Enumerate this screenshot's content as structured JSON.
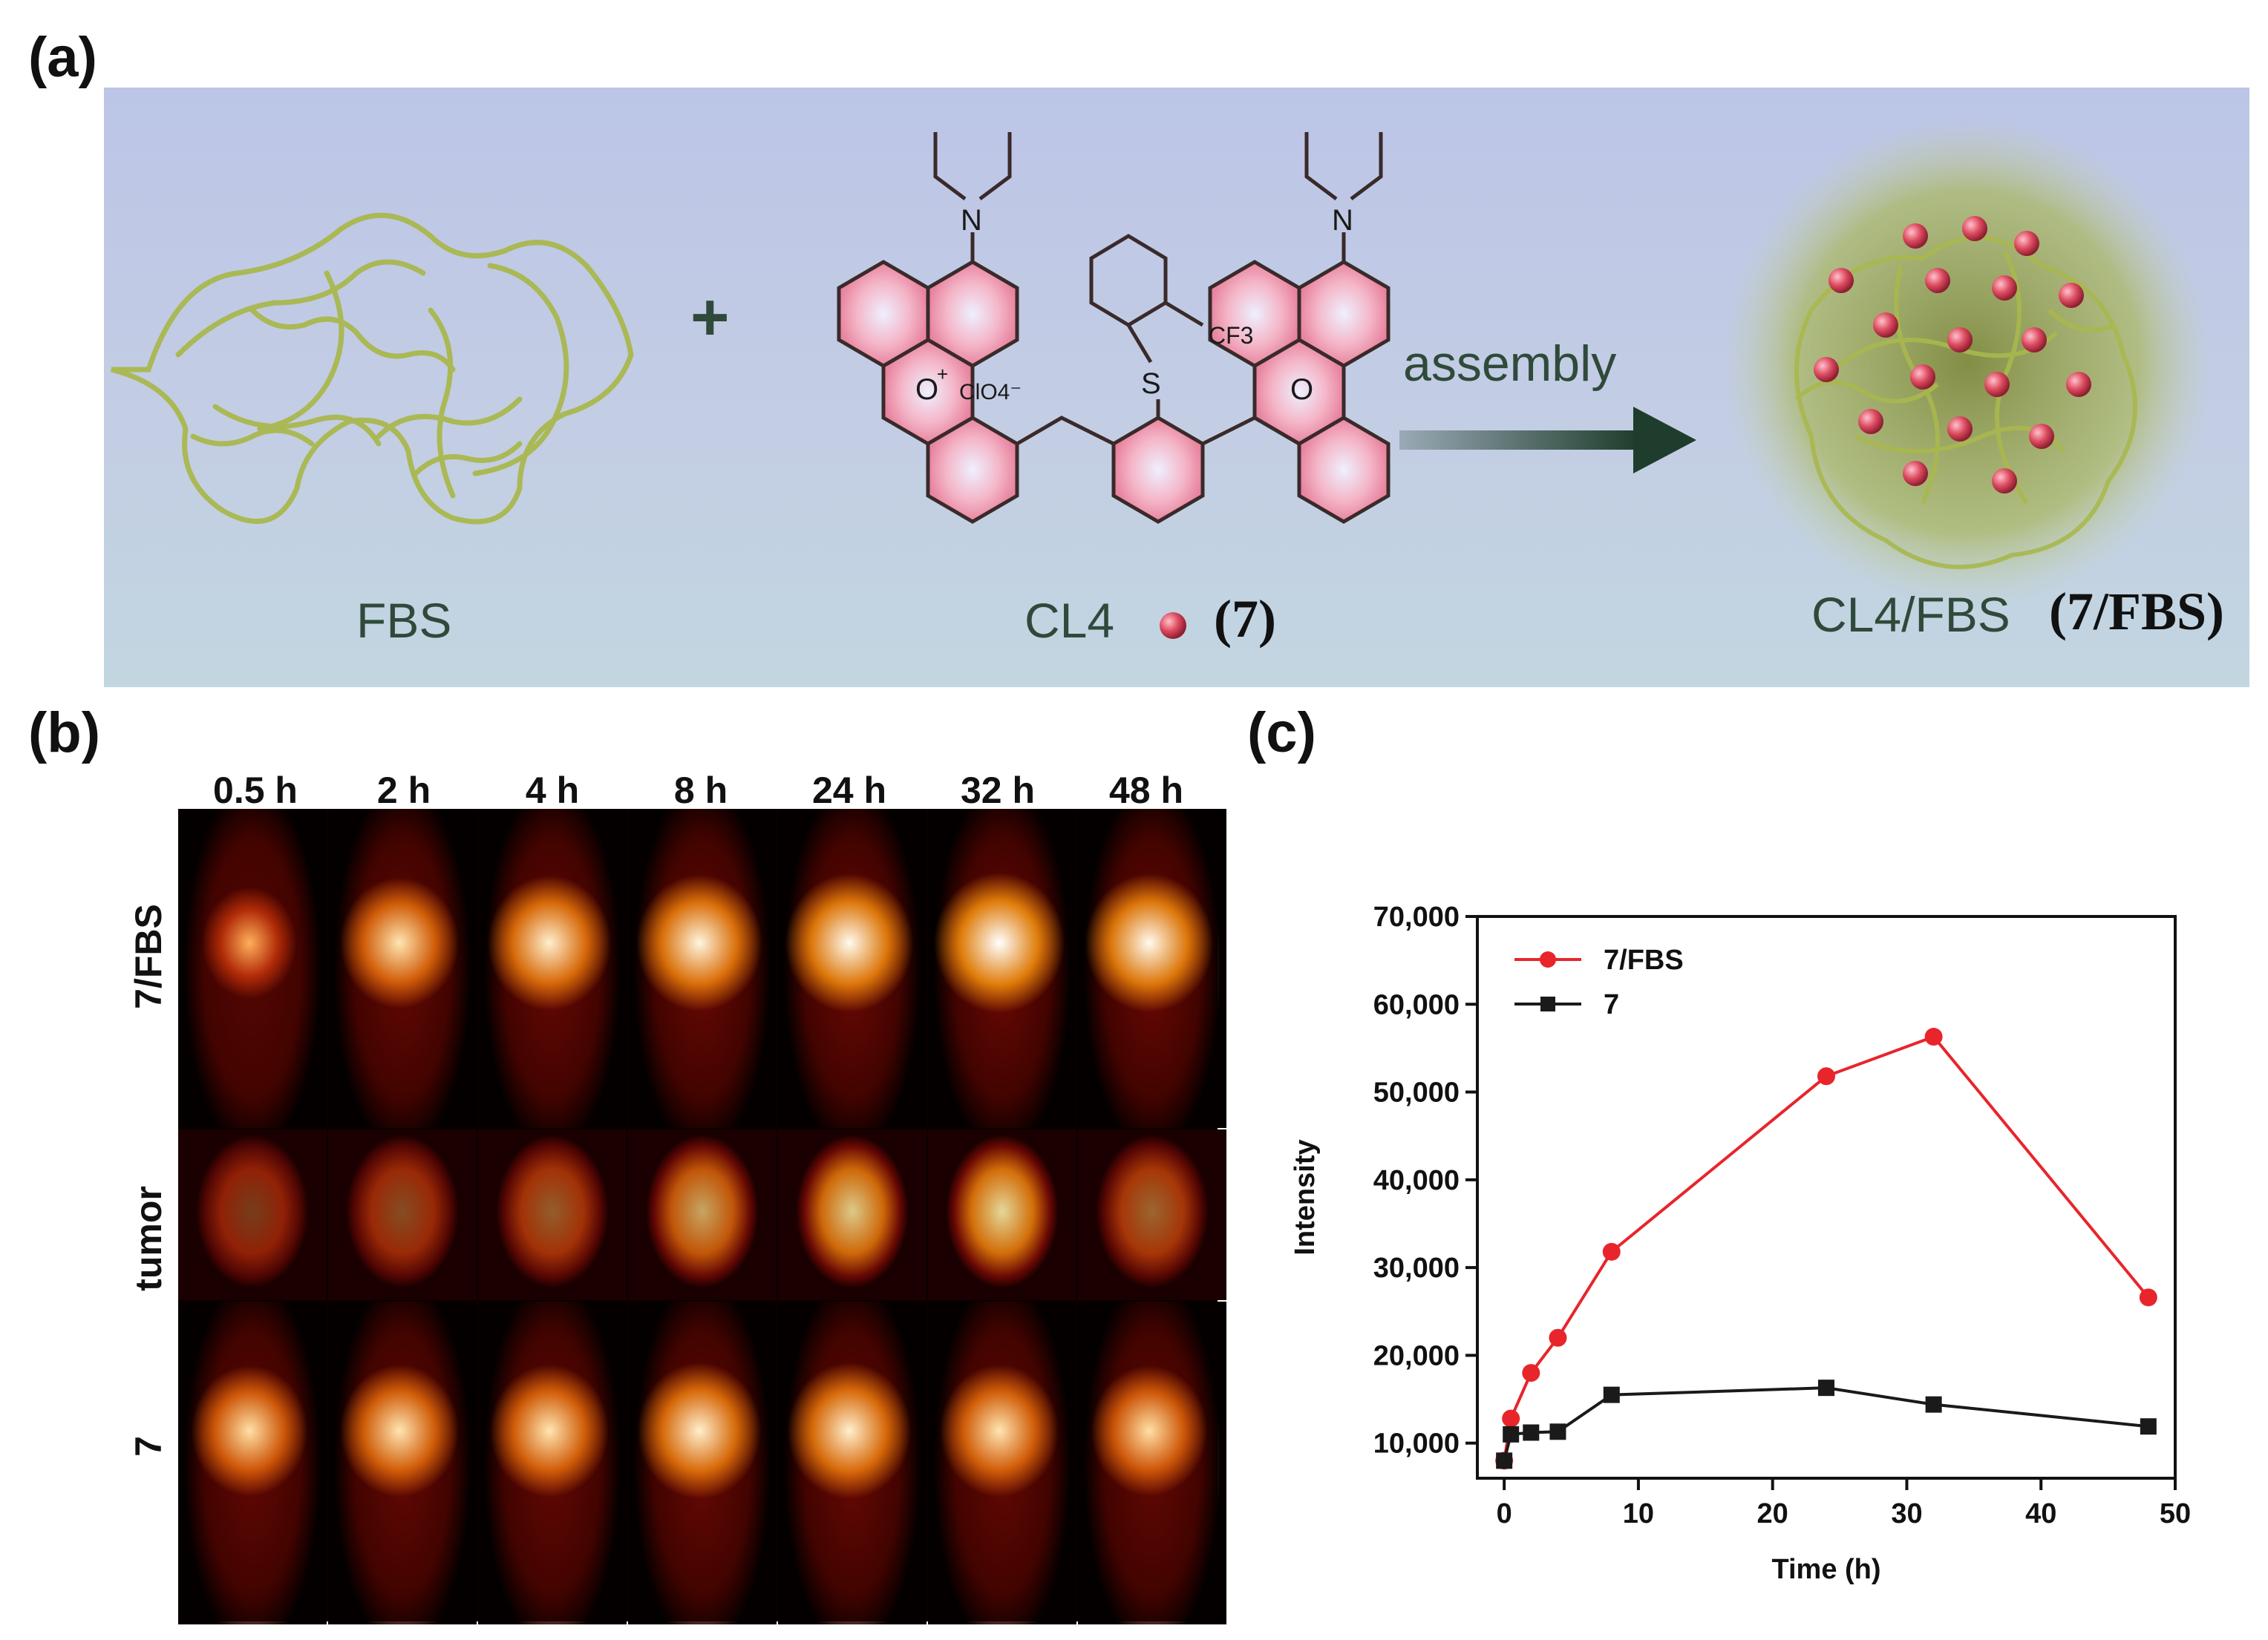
{
  "panel_labels": {
    "a": "(a)",
    "b": "(b)",
    "c": "(c)"
  },
  "panel_a": {
    "fbs_label": "FBS",
    "plus": "+",
    "cl4_label": "CL4",
    "cl4_number": "(7)",
    "assembly_label": "assembly",
    "product_label": "CL4/FBS",
    "product_number": "(7/FBS)",
    "structure_atoms": {
      "n_left": "N",
      "n_right": "N",
      "o_left": "O",
      "o_plus": "+",
      "o_right": "O",
      "s": "S",
      "counterion": "ClO4⁻",
      "cf3": "CF3"
    },
    "colors": {
      "protein": "#a9b84e",
      "dye": "#d9435a",
      "arrow": "#1f3d2c",
      "ring_glow": "#f2a5b8"
    }
  },
  "panel_b": {
    "time_labels": [
      "0.5 h",
      "2 h",
      "4 h",
      "8 h",
      "24 h",
      "32 h",
      "48 h"
    ],
    "row_labels": [
      "7/FBS",
      "tumor",
      "7"
    ]
  },
  "chart_data": {
    "type": "line",
    "xlabel": "Time (h)",
    "ylabel": "Intensity",
    "xlim": [
      -2,
      50
    ],
    "ylim": [
      6000,
      70000
    ],
    "x_ticks": [
      0,
      10,
      20,
      30,
      40,
      50
    ],
    "y_ticks": [
      10000,
      20000,
      30000,
      40000,
      50000,
      60000,
      70000
    ],
    "y_tick_labels": [
      "10,000",
      "20,000",
      "30,000",
      "40,000",
      "50,000",
      "60,000",
      "70,000"
    ],
    "legend_position": "top-left",
    "series": [
      {
        "name": "7/FBS",
        "color": "#e8252b",
        "marker": "circle",
        "x": [
          0,
          0.5,
          2,
          4,
          8,
          24,
          32,
          48
        ],
        "y": [
          8000,
          12800,
          18000,
          22000,
          31800,
          51800,
          56300,
          26600
        ]
      },
      {
        "name": "7",
        "color": "#1a1a1a",
        "marker": "square",
        "x": [
          0,
          0.5,
          2,
          4,
          8,
          24,
          32,
          48
        ],
        "y": [
          8000,
          11000,
          11200,
          11300,
          15500,
          16300,
          14400,
          11900
        ]
      }
    ]
  }
}
